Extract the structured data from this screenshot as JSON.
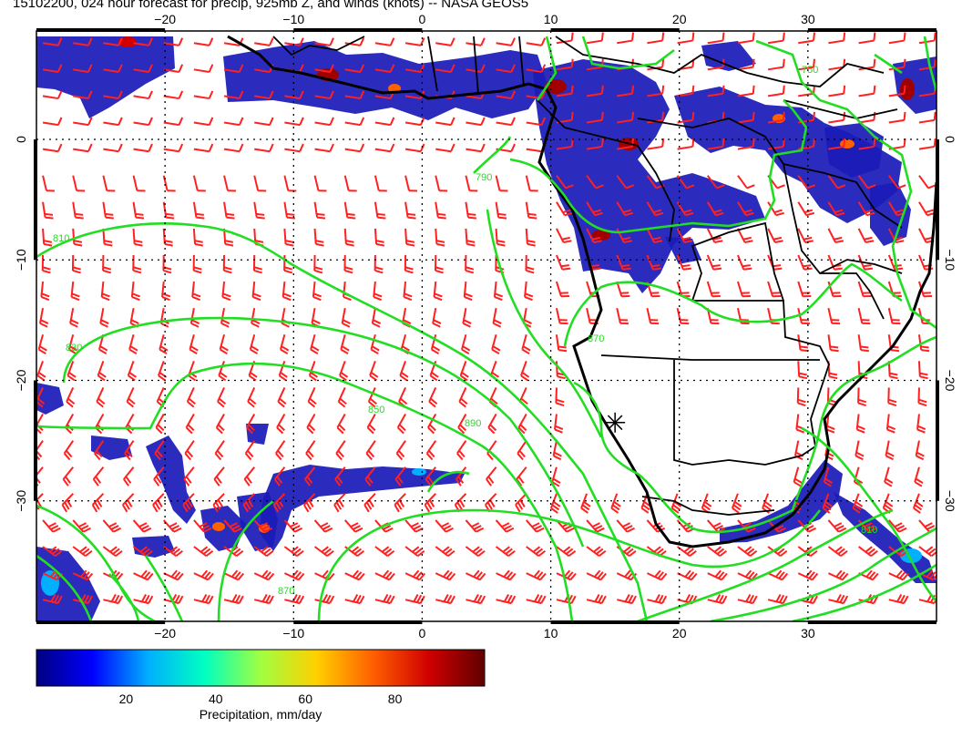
{
  "title": "15102200, 024 hour forecast for precip, 925mb Z, and winds (knots) -- NASA GEOS5",
  "map": {
    "lon_range": [
      -30,
      40
    ],
    "lat_range": [
      -40,
      9
    ],
    "lon_ticks": [
      -20,
      -10,
      0,
      10,
      20,
      30
    ],
    "lon_tick_labels": [
      "−20",
      "−10",
      "0",
      "10",
      "20",
      "30"
    ],
    "lat_ticks": [
      0,
      -10,
      -20,
      -30
    ],
    "lat_tick_labels": [
      "0",
      "−10",
      "−20",
      "−30"
    ],
    "grid": "dotted"
  },
  "contours": {
    "color": "#22dd22",
    "labels": [
      "810",
      "830",
      "850",
      "870",
      "890",
      "790",
      "750"
    ]
  },
  "wind_barbs": {
    "color": "#ff2020",
    "units": "knots"
  },
  "marker": {
    "symbol": "asterisk",
    "lon": 15,
    "lat": -23.5
  },
  "colorbar": {
    "label": "Precipitation, mm/day",
    "ticks": [
      "20",
      "40",
      "60",
      "80"
    ],
    "tick_values": [
      20,
      40,
      60,
      80
    ],
    "range": [
      0,
      100
    ],
    "colors": [
      "#000080",
      "#0000ff",
      "#00b0ff",
      "#00ffc0",
      "#a0ff40",
      "#ffd000",
      "#ff6000",
      "#d00000",
      "#600000"
    ]
  }
}
